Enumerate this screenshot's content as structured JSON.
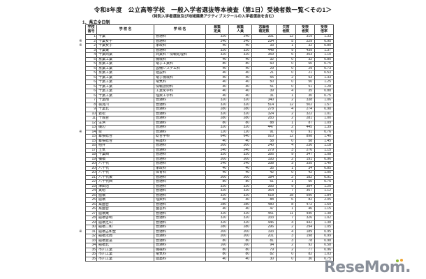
{
  "title": "令和8年度　公立高等学校　一般入学者選抜等本検査（第1日）受検者数一覧＜その1＞",
  "subtitle": "（特別入学者選抜及び地域連携アクティブスクールの入学者選抜を含む）",
  "section_label": "1．県立全日制",
  "watermark": {
    "text": "ReseMom."
  },
  "colors": {
    "border": "#4a4a4a",
    "watermark_gray": "#898f99",
    "watermark_green": "#8cb733",
    "watermark_orange": "#f0a32f"
  },
  "table": {
    "headers": [
      "学校\n番号",
      "学 校 名",
      "学 科 名",
      "募集\n定員",
      "募集\n人員",
      "志願者\n確定数",
      "欠席\n者数",
      "受検\n者数",
      "受検\n倍率"
    ],
    "rows": [
      [
        "",
        "1",
        "千葉",
        "普通科",
        "320",
        "240",
        "331",
        "12",
        "319",
        "1.33"
      ],
      [
        "※",
        "2",
        "千葉女子",
        "普通科",
        "240",
        "240",
        "234",
        "5",
        "229",
        "0.95"
      ],
      [
        "※",
        "2",
        "千葉女子",
        "家政科",
        "40",
        "40",
        "33",
        "1",
        "32",
        "0.80"
      ],
      [
        "",
        "3",
        "千葉東",
        "普通科",
        "320",
        "320",
        "448",
        "9",
        "439",
        "1.37"
      ],
      [
        "",
        "4",
        "千葉商業",
        "商業科・情報処理科",
        "320",
        "320",
        "359",
        "6",
        "353",
        "1.10"
      ],
      [
        "",
        "5",
        "京葉工業",
        "機械科",
        "40",
        "40",
        "32",
        "0",
        "32",
        "0.80"
      ],
      [
        "",
        "5",
        "京葉工業",
        "電子工業科",
        "80",
        "80",
        "60",
        "0",
        "60",
        "0.75"
      ],
      [
        "",
        "5",
        "京葉工業",
        "設備システム科",
        "40",
        "40",
        "29",
        "0",
        "29",
        "0.73"
      ],
      [
        "",
        "5",
        "京葉工業",
        "建設科",
        "40",
        "40",
        "21",
        "0",
        "21",
        "0.53"
      ],
      [
        "",
        "6",
        "千葉工業",
        "電子機械科",
        "40",
        "40",
        "55",
        "2",
        "53",
        "1.33"
      ],
      [
        "",
        "6",
        "千葉工業",
        "電気科",
        "40",
        "40",
        "50",
        "0",
        "50",
        "1.25"
      ],
      [
        "",
        "6",
        "千葉工業",
        "情報技術科",
        "40",
        "40",
        "51",
        "0",
        "51",
        "1.28"
      ],
      [
        "",
        "6",
        "千葉工業",
        "工業化学科",
        "40",
        "40",
        "39",
        "4",
        "35",
        "0.88"
      ],
      [
        "",
        "6",
        "千葉工業",
        "理数工学科",
        "40",
        "40",
        "31",
        "1",
        "30",
        "0.75"
      ],
      [
        "",
        "7",
        "千葉南",
        "普通科",
        "320",
        "320",
        "340",
        "2",
        "338",
        "1.06"
      ],
      [
        "",
        "8",
        "検見川",
        "普通科",
        "320",
        "320",
        "514",
        "12",
        "502",
        "1.57"
      ],
      [
        "",
        "9",
        "千葉北",
        "普通科",
        "280",
        "280",
        "278",
        "4",
        "274",
        "0.98"
      ],
      [
        "",
        "10",
        "若松",
        "普通科",
        "320",
        "320",
        "324",
        "2",
        "322",
        "1.01"
      ],
      [
        "",
        "11",
        "千城台",
        "普通科",
        "280",
        "280",
        "283",
        "2",
        "281",
        "1.00"
      ],
      [
        "",
        "12",
        "生浜",
        "普通科",
        "80",
        "80",
        "88",
        "1",
        "87",
        "1.09"
      ],
      [
        "",
        "13",
        "磯辺",
        "普通科",
        "320",
        "320",
        "447",
        "2",
        "445",
        "1.39"
      ],
      [
        "※",
        "14",
        "泉",
        "普通科",
        "120",
        "120",
        "91",
        "0",
        "91",
        "0.76"
      ],
      [
        "",
        "15",
        "幕張総合",
        "総合学科",
        "640",
        "640",
        "910",
        "12",
        "898",
        "1.40"
      ],
      [
        "",
        "15",
        "幕張総合",
        "看護科",
        "40",
        "40",
        "58",
        "0",
        "58",
        "1.45"
      ],
      [
        "",
        "16",
        "柏井",
        "普通科",
        "200",
        "200",
        "240",
        "4",
        "236",
        "1.18"
      ],
      [
        "",
        "17",
        "土気",
        "普通科",
        "240",
        "240",
        "279",
        "3",
        "276",
        "1.15"
      ],
      [
        "",
        "18",
        "千葉西",
        "普通科",
        "320",
        "320",
        "356",
        "9",
        "347",
        "1.08"
      ],
      [
        "",
        "19",
        "犢橋",
        "普通科",
        "200",
        "200",
        "193",
        "2",
        "191",
        "0.96"
      ],
      [
        "",
        "20",
        "八千代",
        "普通科",
        "240",
        "240",
        "338",
        "3",
        "335",
        "1.40"
      ],
      [
        "",
        "20",
        "八千代",
        "家政科",
        "40",
        "40",
        "35",
        "1",
        "34",
        "0.85"
      ],
      [
        "",
        "20",
        "八千代",
        "体育科",
        "40",
        "40",
        "42",
        "0",
        "42",
        "1.05"
      ],
      [
        "",
        "21",
        "八千代東",
        "普通科",
        "200",
        "200",
        "184",
        "2",
        "182",
        "0.91"
      ],
      [
        "",
        "22",
        "八千代西",
        "普通科",
        "80",
        "80",
        "61",
        "1",
        "60",
        "0.75"
      ],
      [
        "",
        "23",
        "津田沼",
        "普通科",
        "320",
        "320",
        "393",
        "9",
        "384",
        "1.20"
      ],
      [
        "",
        "24",
        "実籾",
        "普通科",
        "320",
        "320",
        "364",
        "7",
        "357",
        "1.12"
      ],
      [
        "",
        "25",
        "船橋",
        "普通科",
        "320",
        "320",
        "618",
        "28",
        "590",
        "1.84"
      ],
      [
        "",
        "25",
        "船橋",
        "理数科",
        "40",
        "40",
        "88",
        "6",
        "82",
        "2.05"
      ],
      [
        "",
        "26",
        "薬園台",
        "普通科",
        "280",
        "280",
        "480",
        "8",
        "472",
        "1.69"
      ],
      [
        "",
        "26",
        "薬園台",
        "園芸科",
        "40",
        "40",
        "47",
        "1",
        "46",
        "1.15"
      ],
      [
        "",
        "27",
        "船橋東",
        "普通科",
        "320",
        "320",
        "451",
        "11",
        "440",
        "1.38"
      ],
      [
        "",
        "28",
        "船橋啓明",
        "普通科",
        "320",
        "320",
        "333",
        "7",
        "326",
        "1.02"
      ],
      [
        "",
        "29",
        "船橋芝山",
        "普通科",
        "320",
        "320",
        "446",
        "4",
        "442",
        "1.38"
      ],
      [
        "",
        "30",
        "船橋二和",
        "普通科",
        "280",
        "280",
        "296",
        "2",
        "294",
        "1.05"
      ],
      [
        "※",
        "31",
        "船橋古和釜",
        "普通科",
        "200",
        "200",
        "193",
        "4",
        "189",
        "0.95"
      ],
      [
        "",
        "32",
        "船橋法典",
        "普通科",
        "200",
        "200",
        "201",
        "3",
        "198",
        "0.99"
      ],
      [
        "",
        "33",
        "船橋豊富",
        "普通科",
        "80",
        "80",
        "81",
        "3",
        "78",
        "0.98"
      ],
      [
        "",
        "34",
        "船橋北",
        "普通科",
        "160",
        "160",
        "94",
        "2",
        "92",
        "0.58"
      ],
      [
        "",
        "35",
        "市川工業",
        "機械科",
        "80",
        "80",
        "79",
        "2",
        "77",
        "0.96"
      ],
      [
        "",
        "35",
        "市川工業",
        "電気科",
        "80",
        "80",
        "82",
        "0",
        "82",
        "1.03"
      ],
      [
        "",
        "35",
        "市川工業",
        "建築科",
        "40",
        "40",
        "30",
        "0",
        "30",
        "0.75"
      ]
    ]
  }
}
